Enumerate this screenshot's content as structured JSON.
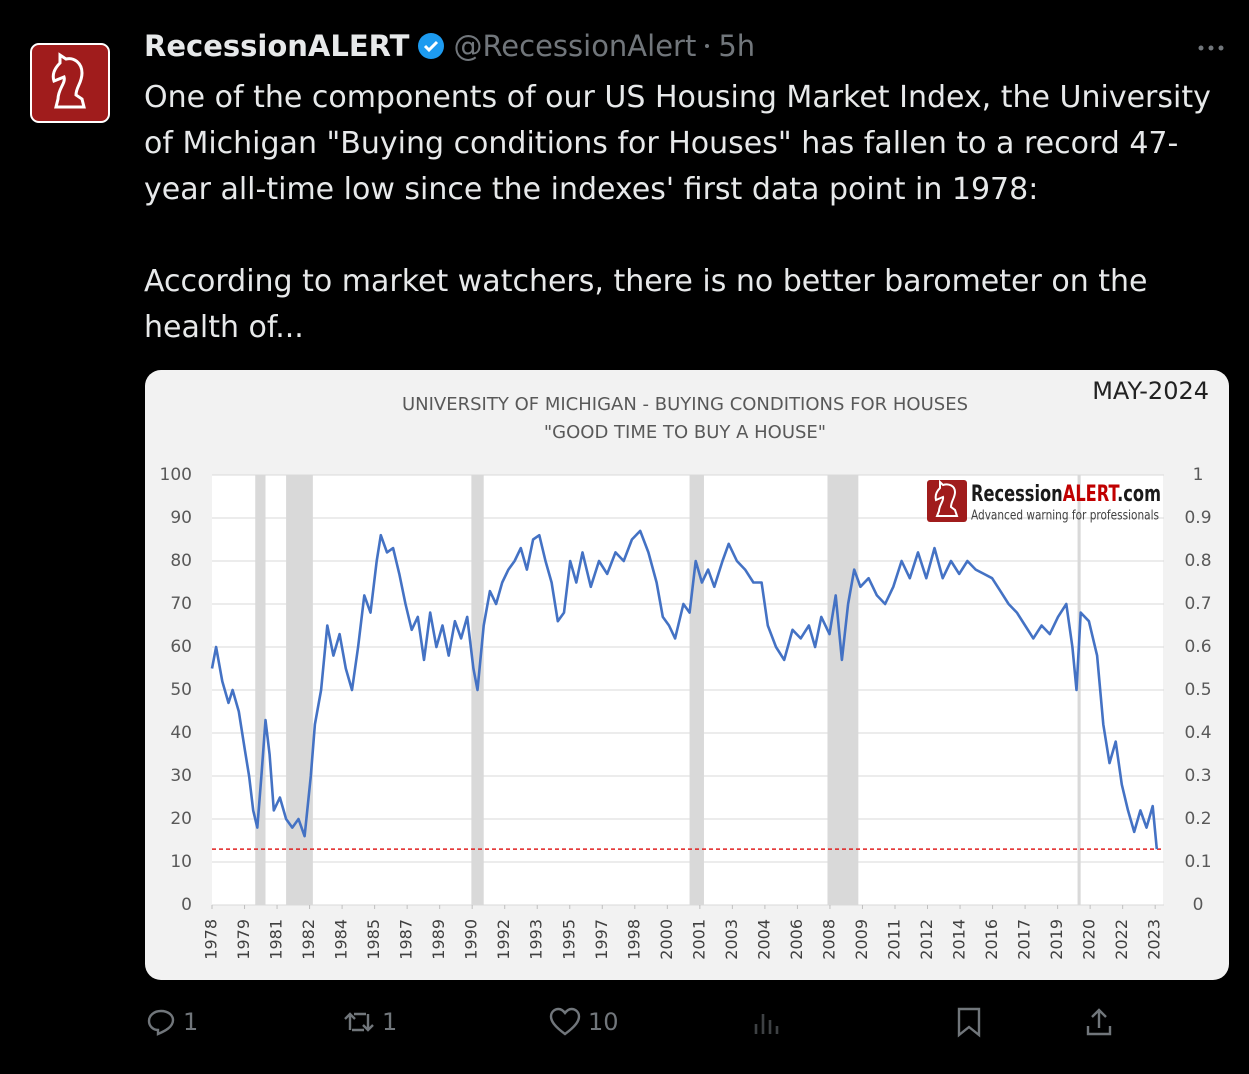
{
  "tweet": {
    "author": "RecessionALERT",
    "handle": "@RecessionAlert",
    "time": "5h",
    "paragraphs": [
      [
        "One of the components of our US Housing Market Index, the University",
        "of Michigan \"Buying conditions for Houses\" has fallen to a record 47-",
        "year all-time low since the indexes' first data point in 1978:"
      ],
      [
        "According to market watchers, there is no better barometer on the",
        "health of..."
      ]
    ],
    "replies": 1,
    "reposts": 1,
    "likes": 10
  },
  "chart_data": {
    "type": "line",
    "title": "UNIVERSITY OF MICHIGAN - BUYING CONDITIONS FOR HOUSES",
    "subtitle": "\"GOOD TIME TO BUY A HOUSE\"",
    "stamp": "MAY-2024",
    "watermark": {
      "brand": "Recession",
      "brand_accent": "ALERT",
      "domain": ".com",
      "tagline": "Advanced warning for professionals"
    },
    "xlim": [
      1978,
      2024.2
    ],
    "xticks": [
      {
        "value": 1978,
        "label": "1978"
      },
      {
        "value": 1979.58,
        "label": "1979"
      },
      {
        "value": 1981.16,
        "label": "1981"
      },
      {
        "value": 1982.74,
        "label": "1982"
      },
      {
        "value": 1984.32,
        "label": "1984"
      },
      {
        "value": 1985.9,
        "label": "1985"
      },
      {
        "value": 1987.48,
        "label": "1987"
      },
      {
        "value": 1989.06,
        "label": "1989"
      },
      {
        "value": 1990.64,
        "label": "1990"
      },
      {
        "value": 1992.22,
        "label": "1992"
      },
      {
        "value": 1993.8,
        "label": "1993"
      },
      {
        "value": 1995.38,
        "label": "1995"
      },
      {
        "value": 1996.96,
        "label": "1997"
      },
      {
        "value": 1998.54,
        "label": "1998"
      },
      {
        "value": 2000.12,
        "label": "2000"
      },
      {
        "value": 2001.7,
        "label": "2001"
      },
      {
        "value": 2003.28,
        "label": "2003"
      },
      {
        "value": 2004.86,
        "label": "2004"
      },
      {
        "value": 2006.44,
        "label": "2006"
      },
      {
        "value": 2008.02,
        "label": "2008"
      },
      {
        "value": 2009.6,
        "label": "2009"
      },
      {
        "value": 2011.18,
        "label": "2011"
      },
      {
        "value": 2012.76,
        "label": "2012"
      },
      {
        "value": 2014.34,
        "label": "2014"
      },
      {
        "value": 2015.92,
        "label": "2016"
      },
      {
        "value": 2017.5,
        "label": "2017"
      },
      {
        "value": 2019.08,
        "label": "2019"
      },
      {
        "value": 2020.66,
        "label": "2020"
      },
      {
        "value": 2022.24,
        "label": "2022"
      },
      {
        "value": 2023.82,
        "label": "2023"
      }
    ],
    "ylim": [
      0,
      100
    ],
    "yticks": [
      0,
      10,
      20,
      30,
      40,
      50,
      60,
      70,
      80,
      90,
      100
    ],
    "y2lim": [
      0,
      1
    ],
    "y2ticks": [
      0,
      0.1,
      0.2,
      0.3,
      0.4,
      0.5,
      0.6,
      0.7,
      0.8,
      0.9,
      1
    ],
    "grid": true,
    "recession_color": "#d9d9d9",
    "recessions": [
      [
        1980.1,
        1980.6
      ],
      [
        1981.6,
        1982.9
      ],
      [
        1990.6,
        1991.2
      ],
      [
        2001.2,
        2001.9
      ],
      [
        2007.9,
        2009.4
      ],
      [
        2020.05,
        2020.2
      ]
    ],
    "reference_line": 13,
    "reference_color": "#e02020",
    "series": [
      {
        "color": "#4472c4",
        "x": [
          1978.0,
          1978.2,
          1978.5,
          1978.8,
          1979.0,
          1979.3,
          1979.6,
          1979.8,
          1980.0,
          1980.2,
          1980.4,
          1980.6,
          1980.8,
          1981.0,
          1981.3,
          1981.6,
          1981.9,
          1982.2,
          1982.5,
          1982.8,
          1983.0,
          1983.3,
          1983.6,
          1983.9,
          1984.2,
          1984.5,
          1984.8,
          1985.1,
          1985.4,
          1985.7,
          1986.0,
          1986.2,
          1986.5,
          1986.8,
          1987.1,
          1987.4,
          1987.7,
          1988.0,
          1988.3,
          1988.6,
          1988.9,
          1989.2,
          1989.5,
          1989.8,
          1990.1,
          1990.4,
          1990.7,
          1990.9,
          1991.2,
          1991.5,
          1991.8,
          1992.1,
          1992.4,
          1992.7,
          1993.0,
          1993.3,
          1993.6,
          1993.9,
          1994.2,
          1994.5,
          1994.8,
          1995.1,
          1995.4,
          1995.7,
          1996.0,
          1996.4,
          1996.8,
          1997.2,
          1997.6,
          1998.0,
          1998.4,
          1998.8,
          1999.2,
          1999.6,
          1999.9,
          2000.2,
          2000.5,
          2000.9,
          2001.2,
          2001.5,
          2001.8,
          2002.1,
          2002.4,
          2002.8,
          2003.1,
          2003.5,
          2003.9,
          2004.3,
          2004.7,
          2005.0,
          2005.4,
          2005.8,
          2006.2,
          2006.6,
          2007.0,
          2007.3,
          2007.6,
          2008.0,
          2008.3,
          2008.6,
          2008.9,
          2009.2,
          2009.5,
          2009.9,
          2010.3,
          2010.7,
          2011.1,
          2011.5,
          2011.9,
          2012.3,
          2012.7,
          2013.1,
          2013.5,
          2013.9,
          2014.3,
          2014.7,
          2015.1,
          2015.5,
          2015.9,
          2016.3,
          2016.7,
          2017.1,
          2017.5,
          2017.9,
          2018.3,
          2018.7,
          2019.1,
          2019.5,
          2019.8,
          2020.0,
          2020.2,
          2020.6,
          2021.0,
          2021.3,
          2021.6,
          2021.9,
          2022.2,
          2022.5,
          2022.8,
          2023.1,
          2023.4,
          2023.7,
          2023.9
        ],
        "values": [
          55,
          60,
          52,
          47,
          50,
          45,
          36,
          30,
          22,
          18,
          30,
          43,
          35,
          22,
          25,
          20,
          18,
          20,
          16,
          30,
          42,
          50,
          65,
          58,
          63,
          55,
          50,
          60,
          72,
          68,
          80,
          86,
          82,
          83,
          77,
          70,
          64,
          67,
          57,
          68,
          60,
          65,
          58,
          66,
          62,
          67,
          55,
          50,
          65,
          73,
          70,
          75,
          78,
          80,
          83,
          78,
          85,
          86,
          80,
          75,
          66,
          68,
          80,
          75,
          82,
          74,
          80,
          77,
          82,
          80,
          85,
          87,
          82,
          75,
          67,
          65,
          62,
          70,
          68,
          80,
          75,
          78,
          74,
          80,
          84,
          80,
          78,
          75,
          75,
          65,
          60,
          57,
          64,
          62,
          65,
          60,
          67,
          63,
          72,
          57,
          70,
          78,
          74,
          76,
          72,
          70,
          74,
          80,
          76,
          82,
          76,
          83,
          76,
          80,
          77,
          80,
          78,
          77,
          76,
          73,
          70,
          68,
          65,
          62,
          65,
          63,
          67,
          70,
          60,
          50,
          68,
          66,
          58,
          42,
          33,
          38,
          28,
          22,
          17,
          22,
          18,
          23,
          13
        ]
      }
    ]
  }
}
